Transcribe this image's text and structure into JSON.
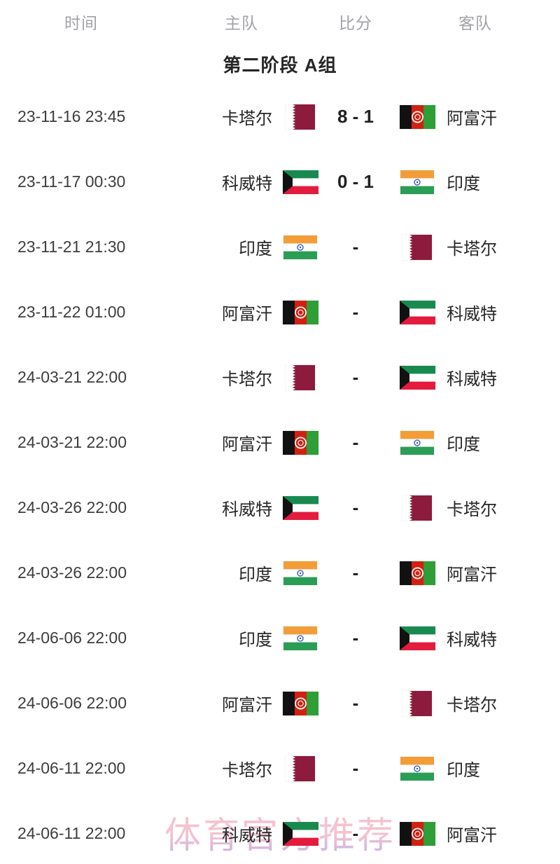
{
  "header": {
    "columns": [
      "时间",
      "主队",
      "比分",
      "客队"
    ]
  },
  "section_title": "第二阶段 A组",
  "watermark_text": "体育官方推荐",
  "matches": [
    {
      "time": "23-11-16 23:45",
      "home": "卡塔尔",
      "home_flag": "qatar",
      "score": "8 - 1",
      "away": "阿富汗",
      "away_flag": "afghanistan"
    },
    {
      "time": "23-11-17 00:30",
      "home": "科威特",
      "home_flag": "kuwait",
      "score": "0 - 1",
      "away": "印度",
      "away_flag": "india"
    },
    {
      "time": "23-11-21 21:30",
      "home": "印度",
      "home_flag": "india",
      "score": "-",
      "away": "卡塔尔",
      "away_flag": "qatar"
    },
    {
      "time": "23-11-22 01:00",
      "home": "阿富汗",
      "home_flag": "afghanistan",
      "score": "-",
      "away": "科威特",
      "away_flag": "kuwait"
    },
    {
      "time": "24-03-21 22:00",
      "home": "卡塔尔",
      "home_flag": "qatar",
      "score": "-",
      "away": "科威特",
      "away_flag": "kuwait"
    },
    {
      "time": "24-03-21 22:00",
      "home": "阿富汗",
      "home_flag": "afghanistan",
      "score": "-",
      "away": "印度",
      "away_flag": "india"
    },
    {
      "time": "24-03-26 22:00",
      "home": "科威特",
      "home_flag": "kuwait",
      "score": "-",
      "away": "卡塔尔",
      "away_flag": "qatar"
    },
    {
      "time": "24-03-26 22:00",
      "home": "印度",
      "home_flag": "india",
      "score": "-",
      "away": "阿富汗",
      "away_flag": "afghanistan"
    },
    {
      "time": "24-06-06 22:00",
      "home": "印度",
      "home_flag": "india",
      "score": "-",
      "away": "科威特",
      "away_flag": "kuwait"
    },
    {
      "time": "24-06-06 22:00",
      "home": "阿富汗",
      "home_flag": "afghanistan",
      "score": "-",
      "away": "卡塔尔",
      "away_flag": "qatar"
    },
    {
      "time": "24-06-11 22:00",
      "home": "卡塔尔",
      "home_flag": "qatar",
      "score": "-",
      "away": "印度",
      "away_flag": "india"
    },
    {
      "time": "24-06-11 22:00",
      "home": "科威特",
      "home_flag": "kuwait",
      "score": "-",
      "away": "阿富汗",
      "away_flag": "afghanistan"
    }
  ],
  "colors": {
    "qatar_maroon": "#8d1b3d",
    "afghan_black": "#111111",
    "afghan_red": "#d32011",
    "afghan_green": "#2f9e36",
    "kuwait_green": "#188a50",
    "kuwait_red": "#e31c3d",
    "kuwait_black": "#111111",
    "india_saffron": "#f29d38",
    "india_green": "#2b9e56",
    "india_navy": "#2a52be",
    "watermark_pink": "#f4b8ca",
    "watermark_violet": "#b4a4e0",
    "header_gray": "#a1a1a7",
    "text_dark": "#262626"
  }
}
